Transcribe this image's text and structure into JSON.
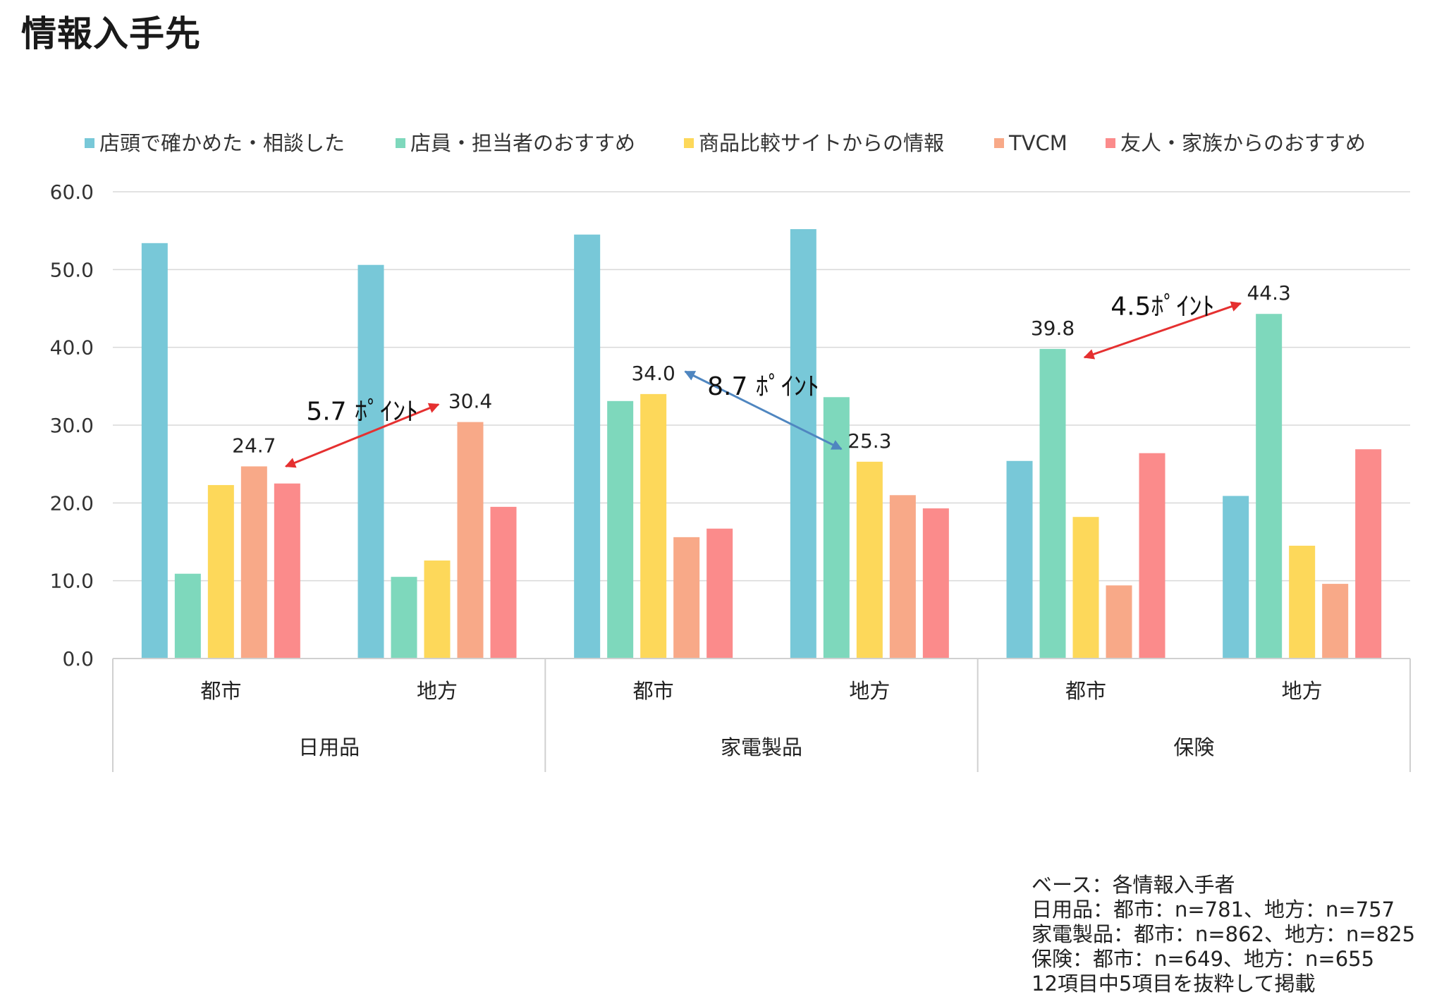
{
  "title": "情報入手先",
  "chart_data": {
    "type": "bar",
    "ylim": [
      0,
      60
    ],
    "yticks": [
      "0.0",
      "10.0",
      "20.0",
      "30.0",
      "40.0",
      "50.0",
      "60.0"
    ],
    "grid": true,
    "legend_position": "top",
    "groups": [
      {
        "label": "日用品",
        "categories": [
          "都市",
          "地方"
        ]
      },
      {
        "label": "家電製品",
        "categories": [
          "都市",
          "地方"
        ]
      },
      {
        "label": "保険",
        "categories": [
          "都市",
          "地方"
        ]
      }
    ],
    "series": [
      {
        "name": "店頭で確かめた・相談した",
        "color": "#78C8D8",
        "values": [
          53.4,
          50.6,
          54.5,
          55.2,
          25.4,
          20.9
        ]
      },
      {
        "name": "店員・担当者のおすすめ",
        "color": "#7ED8BC",
        "values": [
          10.9,
          10.5,
          33.1,
          33.6,
          39.8,
          44.3
        ]
      },
      {
        "name": "商品比較サイトからの情報",
        "color": "#FDD85A",
        "values": [
          22.3,
          12.6,
          34.0,
          25.3,
          18.2,
          14.5
        ]
      },
      {
        "name": "TVCM",
        "color": "#F8A988",
        "values": [
          24.7,
          30.4,
          15.6,
          21.0,
          9.4,
          9.6
        ]
      },
      {
        "name": "友人・家族からのおすすめ",
        "color": "#FB8B8B",
        "values": [
          22.5,
          19.5,
          16.7,
          19.3,
          26.4,
          26.9
        ]
      }
    ],
    "data_labels": [
      {
        "text": "24.7",
        "category_index": 0,
        "series_index": 3
      },
      {
        "text": "30.4",
        "category_index": 1,
        "series_index": 3
      },
      {
        "text": "34.0",
        "category_index": 2,
        "series_index": 2
      },
      {
        "text": "25.3",
        "category_index": 3,
        "series_index": 2
      },
      {
        "text": "39.8",
        "category_index": 4,
        "series_index": 1
      },
      {
        "text": "44.3",
        "category_index": 5,
        "series_index": 1
      }
    ],
    "annotations": [
      {
        "text": "5.7 ﾎﾟｲﾝﾄ",
        "from_label": 0,
        "to_label": 1,
        "color": "#E53030"
      },
      {
        "text": "8.7 ﾎﾟｲﾝﾄ",
        "from_label": 2,
        "to_label": 3,
        "color": "#4F86C0"
      },
      {
        "text": "4.5ﾎﾟｲﾝﾄ",
        "from_label": 4,
        "to_label": 5,
        "color": "#E53030"
      }
    ]
  },
  "notes": [
    "ベース：各情報入手者",
    "日用品：都市：n=781、地方：n=757",
    "家電製品：都市：n=862、地方：n=825",
    "保険：都市：n=649、地方：n=655",
    "12項目中5項目を抜粋して掲載"
  ]
}
